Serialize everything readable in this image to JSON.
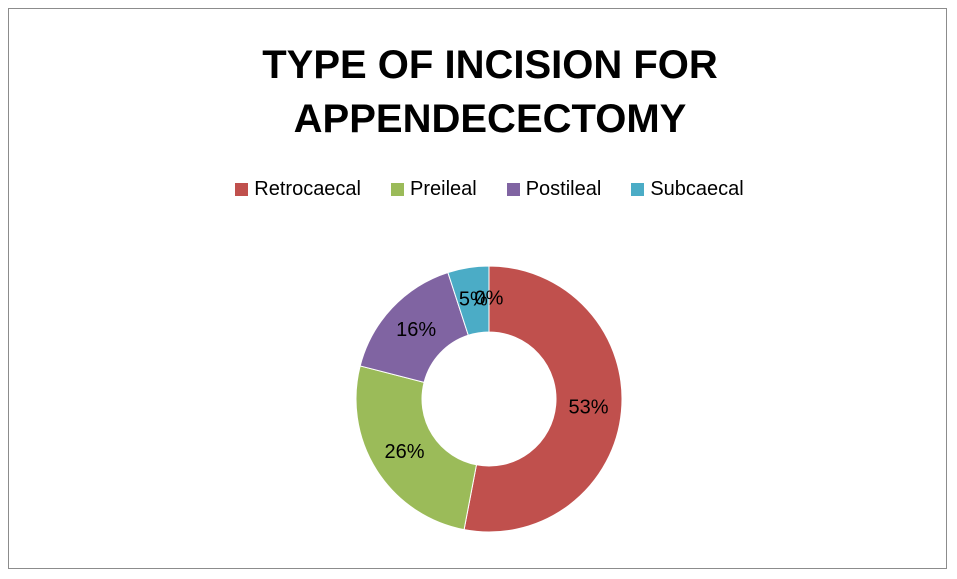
{
  "chart_data": {
    "type": "doughnut",
    "title": "TYPE OF INCISION FOR APPENDECECTOMY",
    "categories": [
      "Retrocaecal",
      "Preileal",
      "Postileal",
      "Subcaecal",
      null
    ],
    "values": [
      53,
      26,
      16,
      5,
      0
    ],
    "value_labels": [
      "53%",
      "26%",
      "16%",
      "5%",
      "0%"
    ],
    "colors": [
      "#c0504d",
      "#9bbb59",
      "#8064a2",
      "#4bacc6",
      "#f79646"
    ],
    "legend": "top"
  }
}
